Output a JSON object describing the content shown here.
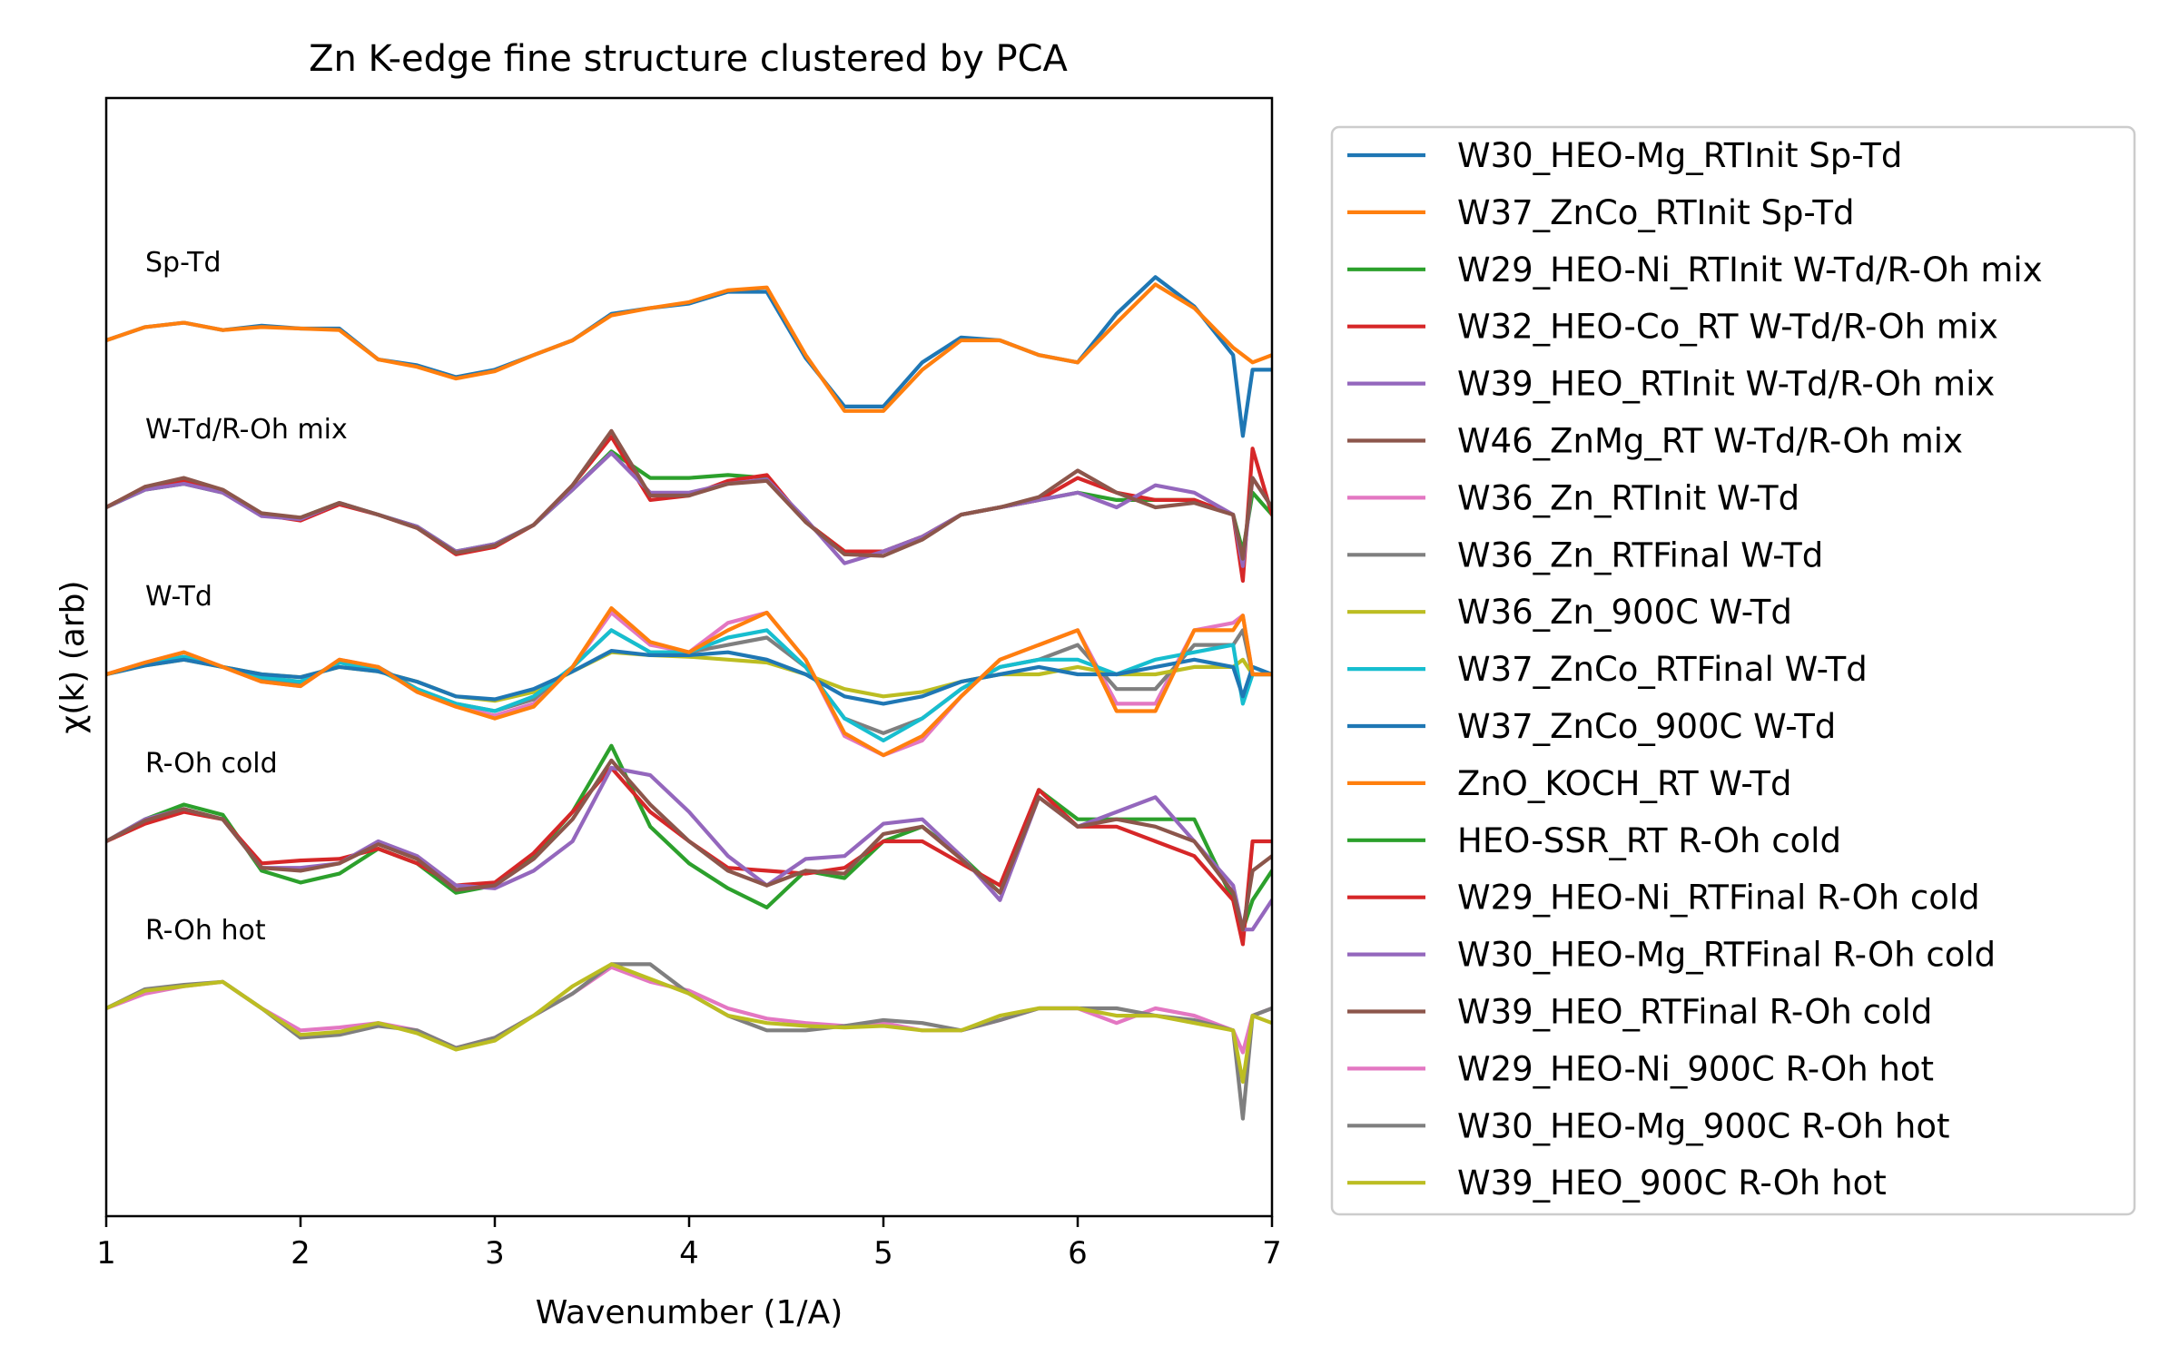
{
  "chart_data": {
    "type": "line",
    "title": "Zn K-edge fine structure clustered by PCA",
    "xlabel": "Wavenumber (1/A)",
    "ylabel": "χ(k) (arb)",
    "xlim": [
      1,
      7
    ],
    "xticks": [
      "1",
      "2",
      "3",
      "4",
      "5",
      "6",
      "7"
    ],
    "y_tick_labels": "none",
    "grid": false,
    "legend_placement": "outside-right",
    "groups": [
      {
        "label": "Sp-Td",
        "offset": 4
      },
      {
        "label": "W-Td/R-Oh mix",
        "offset": 3
      },
      {
        "label": "W-Td",
        "offset": 2
      },
      {
        "label": "R-Oh cold",
        "offset": 1
      },
      {
        "label": "R-Oh hot",
        "offset": 0
      }
    ],
    "x": [
      1.0,
      1.2,
      1.4,
      1.6,
      1.8,
      2.0,
      2.2,
      2.4,
      2.6,
      2.8,
      3.0,
      3.2,
      3.4,
      3.6,
      3.8,
      4.0,
      4.2,
      4.4,
      4.6,
      4.8,
      5.0,
      5.2,
      5.4,
      5.6,
      5.8,
      6.0,
      6.2,
      6.4,
      6.6,
      6.8,
      6.85,
      6.9,
      7.0
    ],
    "series": [
      {
        "name": "W30_HEO-Mg_RTInit Sp-Td",
        "group": 0,
        "color": "#1f77b4",
        "values": [
          0.0,
          0.09,
          0.12,
          0.07,
          0.1,
          0.08,
          0.08,
          -0.13,
          -0.17,
          -0.25,
          -0.2,
          -0.1,
          0.0,
          0.18,
          0.22,
          0.25,
          0.33,
          0.33,
          -0.12,
          -0.45,
          -0.45,
          -0.15,
          0.02,
          0.0,
          -0.1,
          -0.15,
          0.18,
          0.43,
          0.23,
          -0.1,
          -0.65,
          -0.2,
          -0.2
        ]
      },
      {
        "name": "W37_ZnCo_RTInit Sp-Td",
        "group": 0,
        "color": "#ff7f0e",
        "values": [
          0.0,
          0.09,
          0.12,
          0.07,
          0.09,
          0.08,
          0.07,
          -0.13,
          -0.18,
          -0.26,
          -0.21,
          -0.1,
          0.0,
          0.17,
          0.22,
          0.26,
          0.34,
          0.36,
          -0.1,
          -0.48,
          -0.48,
          -0.2,
          0.0,
          0.0,
          -0.1,
          -0.15,
          0.12,
          0.38,
          0.22,
          -0.05,
          -0.1,
          -0.15,
          -0.1
        ]
      },
      {
        "name": "W29_HEO-Ni_RTInit W-Td/R-Oh mix",
        "group": 1,
        "color": "#2ca02c",
        "values": [
          0.0,
          0.12,
          0.16,
          0.1,
          -0.05,
          -0.07,
          0.03,
          -0.05,
          -0.13,
          -0.3,
          -0.25,
          -0.12,
          0.12,
          0.38,
          0.2,
          0.2,
          0.22,
          0.2,
          -0.1,
          -0.3,
          -0.3,
          -0.2,
          -0.05,
          0.0,
          0.05,
          0.1,
          0.05,
          0.05,
          0.05,
          -0.05,
          -0.3,
          0.1,
          -0.05
        ]
      },
      {
        "name": "W32_HEO-Co_RT W-Td/R-Oh mix",
        "group": 1,
        "color": "#d62728",
        "values": [
          0.0,
          0.14,
          0.18,
          0.1,
          -0.05,
          -0.09,
          0.02,
          -0.05,
          -0.14,
          -0.32,
          -0.27,
          -0.12,
          0.15,
          0.48,
          0.05,
          0.08,
          0.18,
          0.22,
          -0.1,
          -0.3,
          -0.3,
          -0.2,
          -0.05,
          0.0,
          0.05,
          0.2,
          0.1,
          0.05,
          0.05,
          -0.05,
          -0.5,
          0.4,
          -0.05
        ]
      },
      {
        "name": "W39_HEO_RTInit W-Td/R-Oh mix",
        "group": 1,
        "color": "#9467bd",
        "values": [
          0.0,
          0.12,
          0.16,
          0.1,
          -0.06,
          -0.08,
          0.03,
          -0.05,
          -0.13,
          -0.3,
          -0.25,
          -0.12,
          0.12,
          0.37,
          0.1,
          0.1,
          0.16,
          0.19,
          -0.08,
          -0.38,
          -0.3,
          -0.2,
          -0.05,
          0.0,
          0.05,
          0.1,
          0.0,
          0.15,
          0.1,
          -0.05,
          -0.4,
          0.2,
          0.0
        ]
      },
      {
        "name": "W46_ZnMg_RT W-Td/R-Oh mix",
        "group": 1,
        "color": "#8c564b",
        "values": [
          0.0,
          0.14,
          0.2,
          0.12,
          -0.04,
          -0.07,
          0.03,
          -0.05,
          -0.14,
          -0.31,
          -0.26,
          -0.12,
          0.15,
          0.52,
          0.08,
          0.08,
          0.16,
          0.18,
          -0.1,
          -0.32,
          -0.33,
          -0.22,
          -0.05,
          0.0,
          0.07,
          0.25,
          0.1,
          0.0,
          0.03,
          -0.05,
          -0.35,
          0.2,
          0.0
        ]
      },
      {
        "name": "W36_Zn_RTInit W-Td",
        "group": 2,
        "color": "#e377c2",
        "values": [
          0.0,
          0.08,
          0.15,
          0.05,
          -0.05,
          -0.08,
          0.1,
          0.05,
          -0.12,
          -0.22,
          -0.28,
          -0.2,
          0.05,
          0.42,
          0.2,
          0.15,
          0.35,
          0.42,
          0.1,
          -0.42,
          -0.55,
          -0.45,
          -0.15,
          0.1,
          0.2,
          0.3,
          -0.2,
          -0.2,
          0.3,
          0.35,
          0.4,
          0.0,
          0.0
        ]
      },
      {
        "name": "W36_Zn_RTFinal W-Td",
        "group": 2,
        "color": "#7f7f7f",
        "values": [
          0.0,
          0.07,
          0.12,
          0.05,
          -0.03,
          -0.06,
          0.08,
          0.05,
          -0.1,
          -0.2,
          -0.25,
          -0.17,
          0.05,
          0.3,
          0.15,
          0.15,
          0.2,
          0.25,
          0.05,
          -0.3,
          -0.4,
          -0.3,
          -0.1,
          0.05,
          0.1,
          0.2,
          -0.1,
          -0.1,
          0.2,
          0.2,
          0.3,
          0.0,
          0.0
        ]
      },
      {
        "name": "W36_Zn_900C W-Td",
        "group": 2,
        "color": "#bcbd22",
        "values": [
          0.0,
          0.06,
          0.1,
          0.05,
          0.0,
          -0.02,
          0.05,
          0.02,
          -0.05,
          -0.15,
          -0.18,
          -0.12,
          0.02,
          0.15,
          0.13,
          0.12,
          0.1,
          0.08,
          0.0,
          -0.1,
          -0.15,
          -0.12,
          -0.05,
          0.0,
          0.0,
          0.05,
          0.0,
          0.0,
          0.05,
          0.05,
          0.1,
          0.0,
          0.0
        ]
      },
      {
        "name": "W37_ZnCo_RTFinal W-Td",
        "group": 2,
        "color": "#17becf",
        "values": [
          0.0,
          0.07,
          0.12,
          0.05,
          -0.02,
          -0.05,
          0.08,
          0.03,
          -0.1,
          -0.2,
          -0.25,
          -0.15,
          0.05,
          0.3,
          0.15,
          0.15,
          0.25,
          0.3,
          0.05,
          -0.3,
          -0.45,
          -0.3,
          -0.1,
          0.05,
          0.1,
          0.1,
          0.0,
          0.1,
          0.15,
          0.2,
          -0.2,
          0.0,
          0.0
        ]
      },
      {
        "name": "W37_ZnCo_900C W-Td",
        "group": 2,
        "color": "#1f77b4",
        "values": [
          0.0,
          0.06,
          0.1,
          0.05,
          0.0,
          -0.02,
          0.05,
          0.02,
          -0.05,
          -0.15,
          -0.17,
          -0.1,
          0.02,
          0.16,
          0.13,
          0.13,
          0.15,
          0.1,
          0.0,
          -0.15,
          -0.2,
          -0.15,
          -0.05,
          0.0,
          0.05,
          0.0,
          0.0,
          0.05,
          0.1,
          0.05,
          -0.15,
          0.05,
          0.0
        ]
      },
      {
        "name": "ZnO_KOCH_RT W-Td",
        "group": 2,
        "color": "#ff7f0e",
        "values": [
          0.0,
          0.08,
          0.15,
          0.05,
          -0.05,
          -0.08,
          0.1,
          0.05,
          -0.12,
          -0.22,
          -0.3,
          -0.22,
          0.05,
          0.45,
          0.22,
          0.15,
          0.3,
          0.42,
          0.1,
          -0.4,
          -0.55,
          -0.42,
          -0.15,
          0.1,
          0.2,
          0.3,
          -0.25,
          -0.25,
          0.3,
          0.3,
          0.4,
          0.0,
          0.0
        ]
      },
      {
        "name": "HEO-SSR_RT R-Oh cold",
        "group": 3,
        "color": "#2ca02c",
        "values": [
          0.0,
          0.15,
          0.25,
          0.18,
          -0.2,
          -0.28,
          -0.22,
          -0.05,
          -0.15,
          -0.35,
          -0.3,
          -0.1,
          0.2,
          0.65,
          0.1,
          -0.15,
          -0.32,
          -0.45,
          -0.2,
          -0.25,
          0.0,
          0.1,
          -0.1,
          -0.35,
          0.35,
          0.15,
          0.15,
          0.15,
          0.15,
          -0.4,
          -0.6,
          -0.4,
          -0.2
        ]
      },
      {
        "name": "W29_HEO-Ni_RTFinal R-Oh cold",
        "group": 3,
        "color": "#d62728",
        "values": [
          0.0,
          0.12,
          0.2,
          0.15,
          -0.15,
          -0.13,
          -0.12,
          -0.05,
          -0.15,
          -0.3,
          -0.28,
          -0.08,
          0.2,
          0.5,
          0.2,
          0.0,
          -0.18,
          -0.2,
          -0.22,
          -0.18,
          0.0,
          0.0,
          -0.15,
          -0.3,
          0.35,
          0.1,
          0.1,
          0.0,
          -0.1,
          -0.4,
          -0.7,
          0.0,
          0.0
        ]
      },
      {
        "name": "W30_HEO-Mg_RTFinal R-Oh cold",
        "group": 3,
        "color": "#9467bd",
        "values": [
          0.0,
          0.15,
          0.22,
          0.15,
          -0.18,
          -0.18,
          -0.15,
          0.0,
          -0.1,
          -0.3,
          -0.32,
          -0.2,
          0.0,
          0.5,
          0.45,
          0.2,
          -0.1,
          -0.3,
          -0.12,
          -0.1,
          0.12,
          0.15,
          -0.1,
          -0.4,
          0.3,
          0.1,
          0.2,
          0.3,
          0.0,
          -0.3,
          -0.6,
          -0.6,
          -0.4
        ]
      },
      {
        "name": "W39_HEO_RTFinal R-Oh cold",
        "group": 3,
        "color": "#8c564b",
        "values": [
          0.0,
          0.14,
          0.22,
          0.15,
          -0.18,
          -0.2,
          -0.15,
          -0.02,
          -0.12,
          -0.33,
          -0.3,
          -0.12,
          0.15,
          0.55,
          0.25,
          0.0,
          -0.2,
          -0.3,
          -0.2,
          -0.22,
          0.05,
          0.1,
          -0.12,
          -0.35,
          0.3,
          0.1,
          0.15,
          0.1,
          0.0,
          -0.35,
          -0.6,
          -0.2,
          -0.1
        ]
      },
      {
        "name": "W29_HEO-Ni_900C R-Oh hot",
        "group": 4,
        "color": "#e377c2",
        "values": [
          0.0,
          0.1,
          0.15,
          0.18,
          0.0,
          -0.15,
          -0.13,
          -0.1,
          -0.15,
          -0.27,
          -0.2,
          -0.05,
          0.1,
          0.28,
          0.18,
          0.12,
          0.0,
          -0.07,
          -0.1,
          -0.12,
          -0.1,
          -0.15,
          -0.15,
          -0.08,
          0.0,
          0.0,
          -0.1,
          0.0,
          -0.05,
          -0.15,
          -0.3,
          -0.05,
          0.0
        ]
      },
      {
        "name": "W30_HEO-Mg_900C R-Oh hot",
        "group": 4,
        "color": "#7f7f7f",
        "values": [
          0.0,
          0.13,
          0.16,
          0.18,
          0.0,
          -0.2,
          -0.18,
          -0.12,
          -0.15,
          -0.27,
          -0.2,
          -0.05,
          0.1,
          0.3,
          0.3,
          0.1,
          -0.05,
          -0.15,
          -0.15,
          -0.12,
          -0.08,
          -0.1,
          -0.15,
          -0.08,
          0.0,
          0.0,
          0.0,
          -0.05,
          -0.08,
          -0.15,
          -0.75,
          -0.05,
          0.0
        ]
      },
      {
        "name": "W39_HEO_900C R-Oh hot",
        "group": 4,
        "color": "#bcbd22",
        "values": [
          0.0,
          0.12,
          0.15,
          0.18,
          0.0,
          -0.18,
          -0.16,
          -0.1,
          -0.17,
          -0.28,
          -0.22,
          -0.05,
          0.15,
          0.3,
          0.2,
          0.1,
          -0.05,
          -0.1,
          -0.12,
          -0.13,
          -0.12,
          -0.15,
          -0.15,
          -0.05,
          0.0,
          0.0,
          -0.05,
          -0.05,
          -0.1,
          -0.15,
          -0.5,
          -0.05,
          -0.1
        ]
      }
    ]
  }
}
